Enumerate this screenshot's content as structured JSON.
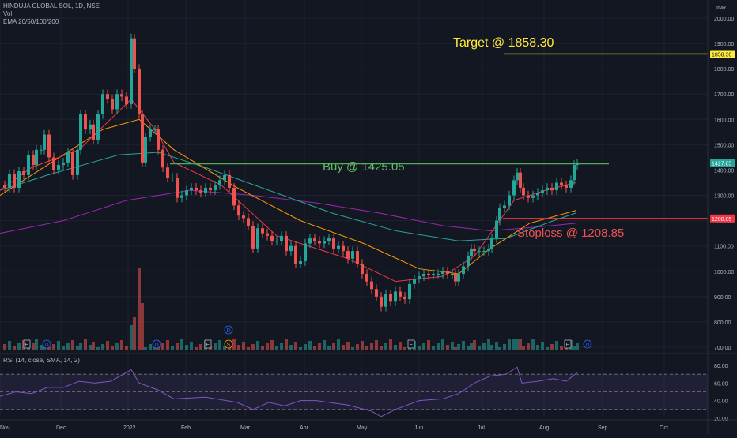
{
  "legend": {
    "symbol": "HINDUJA GLOBAL SOL, 1D, NSE",
    "vol": "Vol",
    "ema": "EMA 20/50/100/200",
    "rsi": "RSI (14, close, SMA, 14, 2)"
  },
  "currency": "INR",
  "colors": {
    "up": "#26a69a",
    "down": "#ef5350",
    "target": "#ffeb3b",
    "buy": "#4caf50",
    "stop": "#f23645",
    "ema20": "#f23645",
    "ema50": "#ff9800",
    "ema100": "#26a69a",
    "ema200": "#9c27b0",
    "rsi": "#7e57c2"
  },
  "chart_data": {
    "type": "line",
    "title": "HINDUJA GLOBAL SOL, 1D, NSE",
    "y_ticks": [
      700,
      800,
      900,
      1000,
      1100,
      1200,
      1300,
      1400,
      1500,
      1600,
      1700,
      1800,
      1900,
      2000
    ],
    "ylim": [
      700,
      2050
    ],
    "rsi_ticks": [
      20,
      40,
      60,
      80
    ],
    "x_ticks": [
      "Nov",
      "Dec",
      "2022",
      "Feb",
      "Mar",
      "Apr",
      "May",
      "Jun",
      "Jul",
      "Aug",
      "Sep",
      "Oct"
    ],
    "close_series": [
      [
        0,
        1340
      ],
      [
        6,
        1330
      ],
      [
        12,
        1385
      ],
      [
        18,
        1330
      ],
      [
        24,
        1395
      ],
      [
        30,
        1380
      ],
      [
        36,
        1460
      ],
      [
        42,
        1420
      ],
      [
        46,
        1480
      ],
      [
        52,
        1480
      ],
      [
        56,
        1540
      ],
      [
        62,
        1450
      ],
      [
        68,
        1400
      ],
      [
        74,
        1420
      ],
      [
        80,
        1430
      ],
      [
        86,
        1470
      ],
      [
        92,
        1380
      ],
      [
        98,
        1480
      ],
      [
        102,
        1620
      ],
      [
        108,
        1560
      ],
      [
        114,
        1580
      ],
      [
        118,
        1520
      ],
      [
        124,
        1620
      ],
      [
        130,
        1700
      ],
      [
        136,
        1680
      ],
      [
        142,
        1640
      ],
      [
        148,
        1700
      ],
      [
        154,
        1690
      ],
      [
        160,
        1660
      ],
      [
        166,
        1920
      ],
      [
        170,
        1800
      ],
      [
        176,
        1620
      ],
      [
        180,
        1430
      ],
      [
        184,
        1530
      ],
      [
        190,
        1560
      ],
      [
        196,
        1560
      ],
      [
        200,
        1480
      ],
      [
        206,
        1410
      ],
      [
        212,
        1370
      ],
      [
        218,
        1370
      ],
      [
        224,
        1290
      ],
      [
        230,
        1300
      ],
      [
        236,
        1320
      ],
      [
        242,
        1330
      ],
      [
        248,
        1320
      ],
      [
        254,
        1310
      ],
      [
        260,
        1330
      ],
      [
        266,
        1320
      ],
      [
        272,
        1340
      ],
      [
        278,
        1360
      ],
      [
        284,
        1380
      ],
      [
        290,
        1330
      ],
      [
        296,
        1260
      ],
      [
        302,
        1220
      ],
      [
        308,
        1210
      ],
      [
        314,
        1180
      ],
      [
        320,
        1090
      ],
      [
        326,
        1170
      ],
      [
        332,
        1150
      ],
      [
        338,
        1140
      ],
      [
        344,
        1120
      ],
      [
        350,
        1120
      ],
      [
        356,
        1140
      ],
      [
        362,
        1080
      ],
      [
        368,
        1100
      ],
      [
        374,
        1030
      ],
      [
        380,
        1040
      ],
      [
        386,
        1110
      ],
      [
        392,
        1130
      ],
      [
        398,
        1120
      ],
      [
        404,
        1110
      ],
      [
        410,
        1120
      ],
      [
        416,
        1130
      ],
      [
        422,
        1090
      ],
      [
        428,
        1100
      ],
      [
        434,
        1080
      ],
      [
        440,
        1050
      ],
      [
        446,
        1080
      ],
      [
        452,
        1030
      ],
      [
        458,
        990
      ],
      [
        464,
        960
      ],
      [
        470,
        930
      ],
      [
        476,
        900
      ],
      [
        482,
        860
      ],
      [
        488,
        910
      ],
      [
        494,
        880
      ],
      [
        500,
        920
      ],
      [
        506,
        900
      ],
      [
        512,
        890
      ],
      [
        518,
        950
      ],
      [
        524,
        970
      ],
      [
        530,
        980
      ],
      [
        536,
        990
      ],
      [
        542,
        985
      ],
      [
        548,
        990
      ],
      [
        554,
        990
      ],
      [
        560,
        1000
      ],
      [
        566,
        990
      ],
      [
        572,
        990
      ],
      [
        576,
        960
      ],
      [
        580,
        990
      ],
      [
        586,
        1020
      ],
      [
        592,
        1060
      ],
      [
        596,
        1090
      ],
      [
        600,
        1080
      ],
      [
        606,
        1080
      ],
      [
        612,
        1080
      ],
      [
        618,
        1090
      ],
      [
        622,
        1130
      ],
      [
        628,
        1200
      ],
      [
        632,
        1250
      ],
      [
        638,
        1260
      ],
      [
        644,
        1300
      ],
      [
        650,
        1360
      ],
      [
        654,
        1390
      ],
      [
        658,
        1330
      ],
      [
        662,
        1300
      ],
      [
        668,
        1290
      ],
      [
        674,
        1300
      ],
      [
        680,
        1310
      ],
      [
        686,
        1320
      ],
      [
        692,
        1330
      ],
      [
        698,
        1320
      ],
      [
        704,
        1350
      ],
      [
        710,
        1340
      ],
      [
        716,
        1330
      ],
      [
        722,
        1360
      ],
      [
        726,
        1420
      ],
      [
        730,
        1427
      ]
    ],
    "ema20": [
      [
        0,
        1320
      ],
      [
        40,
        1410
      ],
      [
        100,
        1480
      ],
      [
        166,
        1680
      ],
      [
        196,
        1560
      ],
      [
        220,
        1430
      ],
      [
        280,
        1340
      ],
      [
        350,
        1140
      ],
      [
        440,
        1050
      ],
      [
        500,
        960
      ],
      [
        560,
        980
      ],
      [
        600,
        1060
      ],
      [
        650,
        1280
      ],
      [
        690,
        1320
      ],
      [
        728,
        1350
      ]
    ],
    "ema50": [
      [
        0,
        1300
      ],
      [
        60,
        1420
      ],
      [
        130,
        1560
      ],
      [
        176,
        1600
      ],
      [
        220,
        1480
      ],
      [
        300,
        1330
      ],
      [
        380,
        1200
      ],
      [
        460,
        1110
      ],
      [
        530,
        1010
      ],
      [
        580,
        990
      ],
      [
        620,
        1090
      ],
      [
        670,
        1190
      ],
      [
        728,
        1240
      ]
    ],
    "ema100": [
      [
        0,
        1320
      ],
      [
        60,
        1380
      ],
      [
        150,
        1460
      ],
      [
        200,
        1470
      ],
      [
        260,
        1410
      ],
      [
        340,
        1320
      ],
      [
        420,
        1230
      ],
      [
        500,
        1160
      ],
      [
        580,
        1120
      ],
      [
        640,
        1130
      ],
      [
        700,
        1200
      ],
      [
        728,
        1230
      ]
    ],
    "ema200": [
      [
        0,
        1150
      ],
      [
        80,
        1200
      ],
      [
        160,
        1280
      ],
      [
        240,
        1320
      ],
      [
        320,
        1300
      ],
      [
        400,
        1270
      ],
      [
        480,
        1230
      ],
      [
        560,
        1180
      ],
      [
        620,
        1160
      ],
      [
        680,
        1175
      ],
      [
        728,
        1190
      ]
    ],
    "rsi": [
      [
        0,
        45
      ],
      [
        20,
        50
      ],
      [
        40,
        48
      ],
      [
        60,
        55
      ],
      [
        80,
        55
      ],
      [
        100,
        62
      ],
      [
        120,
        60
      ],
      [
        140,
        62
      ],
      [
        166,
        75
      ],
      [
        176,
        60
      ],
      [
        200,
        52
      ],
      [
        220,
        42
      ],
      [
        260,
        44
      ],
      [
        300,
        38
      ],
      [
        320,
        30
      ],
      [
        340,
        38
      ],
      [
        360,
        34
      ],
      [
        380,
        40
      ],
      [
        400,
        40
      ],
      [
        440,
        35
      ],
      [
        470,
        28
      ],
      [
        482,
        22
      ],
      [
        500,
        30
      ],
      [
        530,
        40
      ],
      [
        560,
        42
      ],
      [
        580,
        48
      ],
      [
        600,
        60
      ],
      [
        620,
        68
      ],
      [
        640,
        70
      ],
      [
        654,
        78
      ],
      [
        660,
        60
      ],
      [
        680,
        62
      ],
      [
        700,
        65
      ],
      [
        716,
        62
      ],
      [
        730,
        72
      ]
    ],
    "annotations": [
      {
        "label": "Target @ 1858.30",
        "price": 1858.3
      },
      {
        "label": "Buy @ 1425.05",
        "price": 1425.05
      },
      {
        "label": "Stoploss @ 1208.85",
        "price": 1208.85
      }
    ],
    "price_tags": [
      "1858.30",
      "1427.65",
      "1208.85"
    ],
    "event_markers": [
      "E",
      "D",
      "D",
      "E",
      "S",
      "D",
      "E",
      "E",
      "D"
    ]
  }
}
